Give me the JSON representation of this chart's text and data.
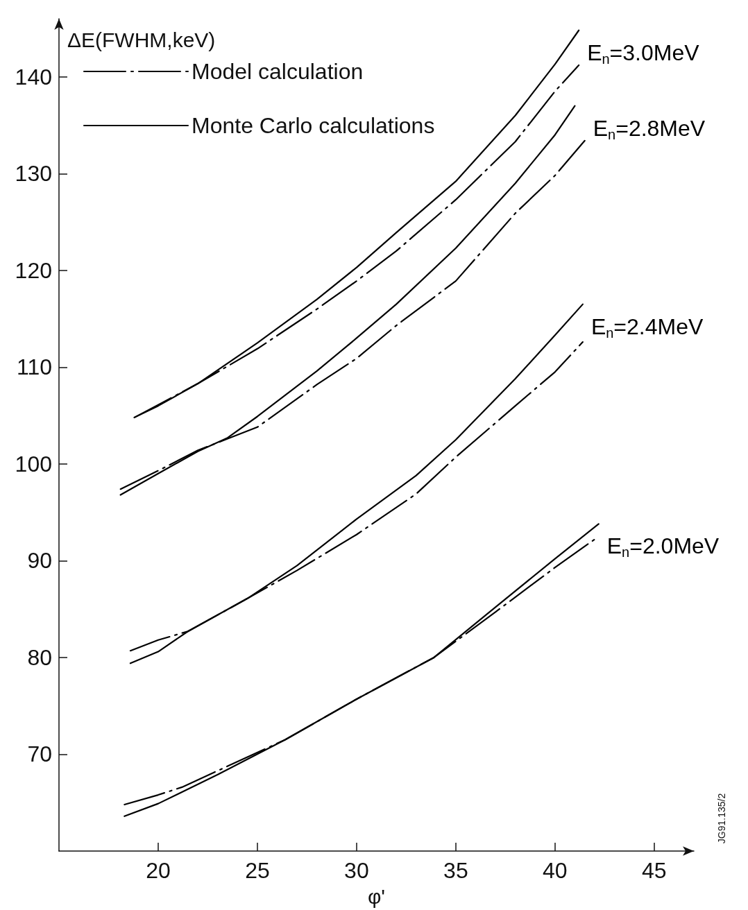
{
  "chart_data": {
    "type": "line",
    "xlabel": "φ'",
    "ylabel": "ΔE(FWHM,keV)",
    "xlim": [
      15,
      47
    ],
    "ylim": [
      60,
      146
    ],
    "xticks": [
      20,
      25,
      30,
      35,
      40,
      45
    ],
    "yticks": [
      70,
      80,
      90,
      100,
      110,
      120,
      130,
      140
    ],
    "grid": false,
    "legend": "top left",
    "marker": "none",
    "annotations": [
      "E$_{n}$=3.0MeV",
      "E$_{n}$=2.8MeV",
      "E$_{n}$=2.4MeV",
      "E$_{n}$=2.0MeV",
      "JG91.135/2"
    ],
    "series": [
      {
        "name": "Model calculation",
        "color": "#000000",
        "line_style": "dashed",
        "x": [
          18.8,
          20,
          22,
          25,
          28,
          30,
          32,
          35,
          38,
          40,
          41.2
        ],
        "values": [
          104.8,
          106.1,
          108.3,
          111.9,
          116.0,
          118.9,
          122.0,
          127.3,
          133.3,
          138.5,
          141.2
        ]
      },
      {
        "name": "Monte Carlo calculations",
        "color": "#000000",
        "line_style": "solid",
        "x": [
          18.8,
          20,
          22,
          25,
          28,
          30,
          32,
          35,
          38,
          40,
          41.2
        ],
        "values": [
          104.8,
          106.0,
          108.3,
          112.5,
          117.0,
          120.3,
          123.9,
          129.2,
          136.0,
          141.3,
          144.8
        ]
      },
      {
        "color": "#000000",
        "line_style": "dashed",
        "x": [
          18.1,
          20,
          22,
          23.5,
          25,
          28,
          30,
          32,
          35,
          38,
          40,
          41.5
        ],
        "values": [
          97.4,
          99.3,
          101.4,
          102.6,
          103.8,
          108.2,
          110.9,
          114.3,
          118.9,
          125.9,
          129.8,
          133.4
        ]
      },
      {
        "color": "#000000",
        "line_style": "solid",
        "x": [
          18.1,
          20,
          22,
          23.5,
          25,
          28,
          30,
          32,
          35,
          38,
          40,
          41.0
        ],
        "values": [
          96.8,
          99.0,
          101.3,
          102.7,
          104.9,
          109.6,
          113.0,
          116.5,
          122.3,
          129.0,
          134.0,
          137.0
        ]
      },
      {
        "color": "#000000",
        "line_style": "dashed",
        "x": [
          18.6,
          20,
          21.5,
          24.5,
          27,
          30,
          33,
          35,
          38,
          40,
          41.4
        ],
        "values": [
          80.7,
          81.8,
          82.7,
          86.1,
          89.0,
          92.7,
          96.9,
          100.7,
          106.0,
          109.5,
          112.6
        ]
      },
      {
        "color": "#000000",
        "line_style": "solid",
        "x": [
          18.6,
          20,
          21.5,
          24.5,
          27,
          30,
          33,
          35,
          38,
          40,
          41.4
        ],
        "values": [
          79.4,
          80.6,
          82.7,
          86.1,
          89.5,
          94.3,
          98.8,
          102.5,
          108.8,
          113.3,
          116.5
        ]
      },
      {
        "color": "#000000",
        "line_style": "dashed",
        "x": [
          18.3,
          20,
          21.2,
          23,
          26.4,
          30,
          33.9,
          37,
          40,
          42.2
        ],
        "values": [
          64.8,
          65.8,
          66.6,
          68.3,
          71.5,
          75.7,
          80.0,
          84.7,
          89.3,
          92.5
        ]
      },
      {
        "color": "#000000",
        "line_style": "solid",
        "x": [
          18.3,
          20,
          23,
          26.4,
          30,
          33.9,
          37,
          40,
          42.2
        ],
        "values": [
          63.6,
          64.9,
          67.9,
          71.5,
          75.7,
          80.0,
          85.2,
          90.2,
          93.8
        ]
      }
    ]
  }
}
